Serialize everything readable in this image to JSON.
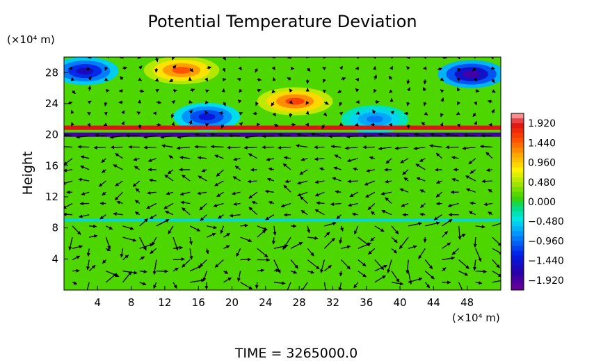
{
  "chart_data": {
    "type": "heatmap",
    "title": "Potential Temperature Deviation",
    "xlabel": "",
    "ylabel": "Height",
    "x_unit": "(×10⁴ m)",
    "y_unit": "(×10⁴ m)",
    "xlim": [
      0,
      52
    ],
    "ylim": [
      0,
      30
    ],
    "x_ticks": [
      "4",
      "8",
      "12",
      "16",
      "20",
      "24",
      "28",
      "32",
      "36",
      "40",
      "44",
      "48"
    ],
    "y_ticks": [
      "4",
      "8",
      "12",
      "16",
      "20",
      "24",
      "28"
    ],
    "x_tick_values": [
      4,
      8,
      12,
      16,
      20,
      24,
      28,
      32,
      36,
      40,
      44,
      48
    ],
    "y_tick_values": [
      4,
      8,
      12,
      16,
      20,
      24,
      28
    ],
    "colorbar": {
      "labels": [
        "1.920",
        "1.440",
        "0.960",
        "0.480",
        "0.000",
        "−0.480",
        "−0.960",
        "−1.440",
        "−1.920"
      ],
      "values": [
        1.92,
        1.44,
        0.96,
        0.48,
        0.0,
        -0.48,
        -0.96,
        -1.44,
        -1.92
      ],
      "range": [
        -2.16,
        2.16
      ]
    },
    "features": [
      {
        "name": "warm anomaly",
        "x": 14,
        "y": 28.3,
        "value": 1.5
      },
      {
        "name": "warm anomaly",
        "x": 27.5,
        "y": 24.3,
        "value": 1.6
      },
      {
        "name": "cold anomaly",
        "x": 2.5,
        "y": 28.2,
        "value": -1.6
      },
      {
        "name": "cold anomaly",
        "x": 48.5,
        "y": 27.8,
        "value": -1.9
      },
      {
        "name": "cold anomaly",
        "x": 17,
        "y": 22.3,
        "value": -1.4
      },
      {
        "name": "cold anomaly",
        "x": 37,
        "y": 22.0,
        "value": -0.9
      },
      {
        "name": "warm layer",
        "y": 20.9,
        "value": 1.9
      },
      {
        "name": "cold layer",
        "y": 20.0,
        "value": -1.9
      },
      {
        "name": "cool layer",
        "y": 9.0,
        "value": -0.5
      }
    ],
    "vectors": "wind vector field overlay (arrows)",
    "grid": false
  },
  "footer": {
    "time_text": "TIME  =  3265000.0"
  }
}
